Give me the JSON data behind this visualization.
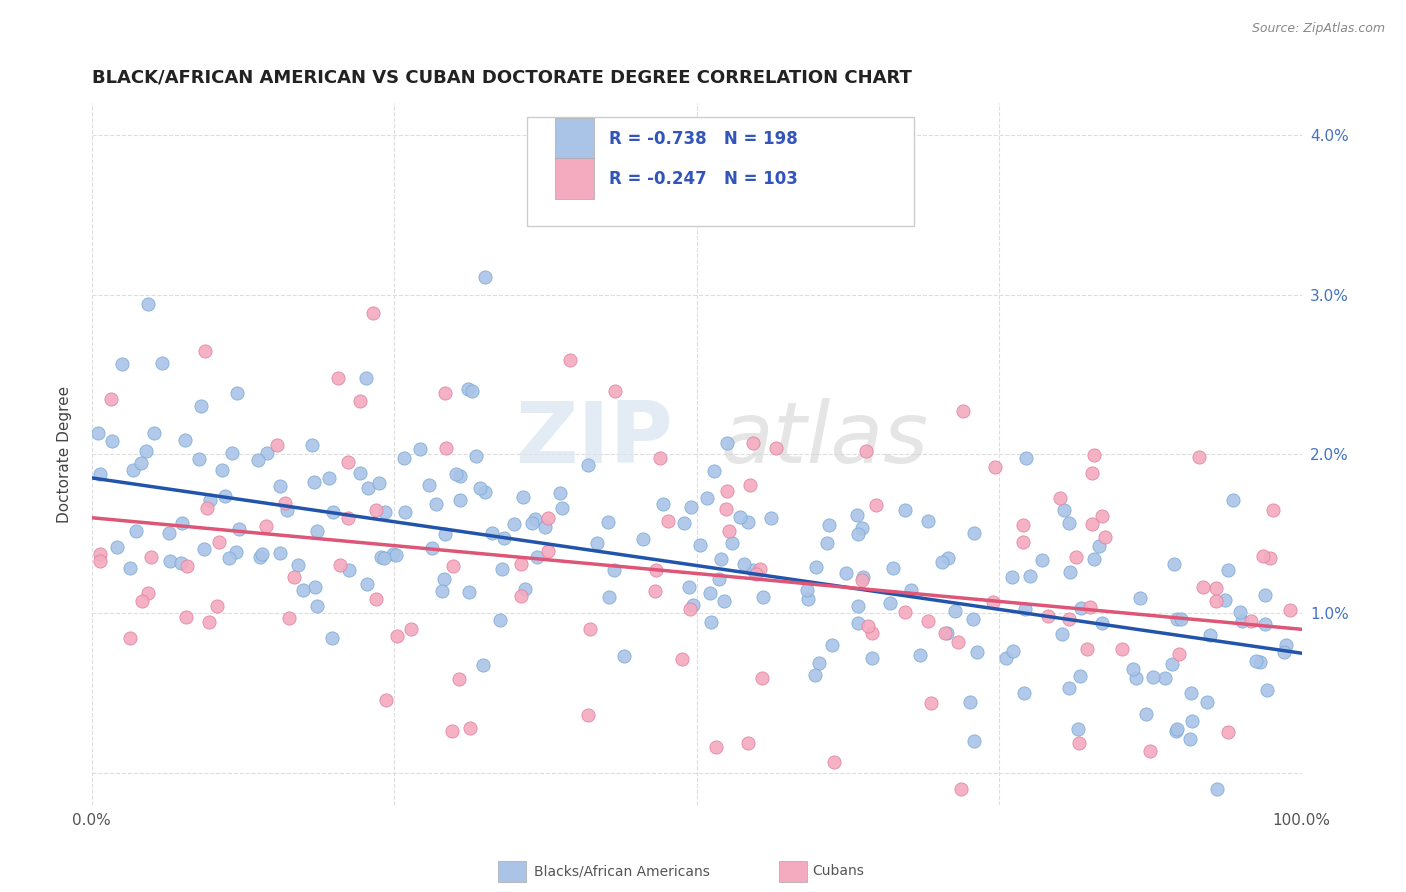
{
  "title": "BLACK/AFRICAN AMERICAN VS CUBAN DOCTORATE DEGREE CORRELATION CHART",
  "source_text": "Source: ZipAtlas.com",
  "ylabel": "Doctorate Degree",
  "watermark_zip": "ZIP",
  "watermark_atlas": "atlas",
  "blue_label": "Blacks/African Americans",
  "pink_label": "Cubans",
  "blue_R": -0.738,
  "blue_N": 198,
  "pink_R": -0.247,
  "pink_N": 103,
  "blue_color": "#aac4e8",
  "blue_edge_color": "#7aaad4",
  "blue_line_color": "#2255aa",
  "pink_color": "#f4aabf",
  "pink_edge_color": "#e080a0",
  "pink_line_color": "#dd5577",
  "xlim": [
    0.0,
    1.0
  ],
  "ylim": [
    -0.002,
    0.042
  ],
  "yticks": [
    0.0,
    0.01,
    0.02,
    0.03,
    0.04
  ],
  "ytick_labels": [
    "",
    "1.0%",
    "2.0%",
    "3.0%",
    "4.0%"
  ],
  "xticks": [
    0.0,
    0.25,
    0.5,
    0.75,
    1.0
  ],
  "xtick_labels": [
    "0.0%",
    "",
    "",
    "",
    "100.0%"
  ],
  "background_color": "#ffffff",
  "grid_color": "#dddddd",
  "title_fontsize": 13,
  "axis_label_fontsize": 11,
  "tick_label_fontsize": 11,
  "blue_seed": 42,
  "pink_seed": 99,
  "blue_trend_start_x": 0.0,
  "blue_trend_start_y": 0.0185,
  "blue_trend_end_x": 1.0,
  "blue_trend_end_y": 0.0075,
  "pink_trend_start_x": 0.0,
  "pink_trend_start_y": 0.016,
  "pink_trend_end_x": 1.0,
  "pink_trend_end_y": 0.009
}
